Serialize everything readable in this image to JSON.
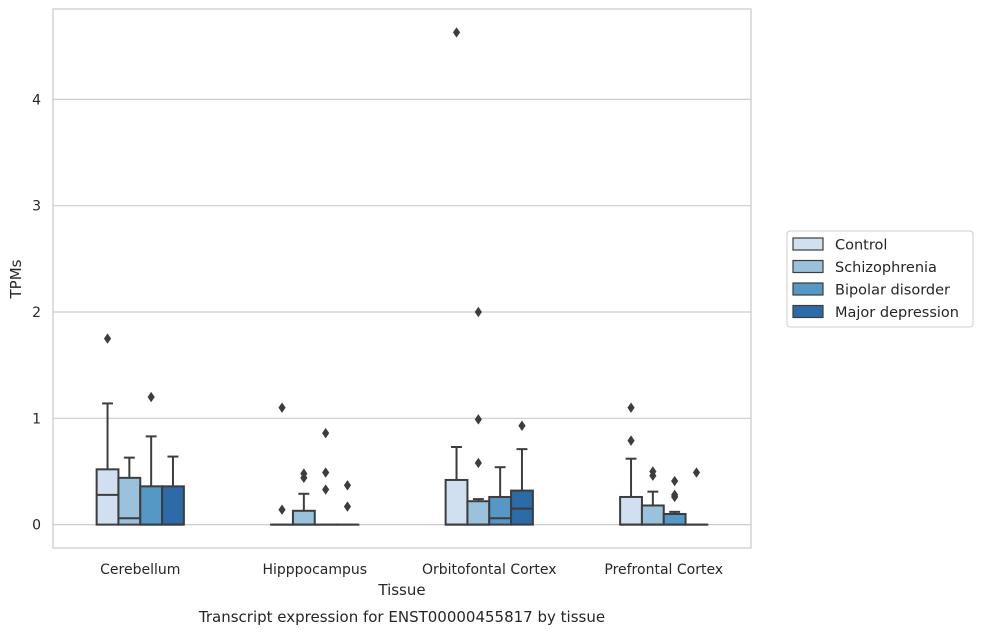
{
  "chart_data": {
    "type": "box",
    "title": "",
    "caption": "Transcript expression for ENST00000455817 by tissue",
    "xlabel": "Tissue",
    "ylabel": "TPMs",
    "ylim": [
      -0.22,
      4.85
    ],
    "yticks": [
      0,
      1,
      2,
      3,
      4
    ],
    "grid": "horizontal",
    "legend_position": "right",
    "categories": [
      "Cerebellum",
      "Hipppocampus",
      "Orbitofontal Cortex",
      "Prefrontal Cortex"
    ],
    "series": [
      {
        "name": "Control",
        "color": "#d0e0f0",
        "boxes": [
          {
            "q1": 0,
            "median": 0.28,
            "q3": 0.52,
            "whisker_low": 0,
            "whisker_high": 1.14,
            "outliers": [
              1.75
            ]
          },
          {
            "q1": 0,
            "median": 0,
            "q3": 0,
            "whisker_low": 0,
            "whisker_high": 0,
            "outliers": [
              1.1,
              0.14
            ]
          },
          {
            "q1": 0,
            "median": 0,
            "q3": 0.42,
            "whisker_low": 0,
            "whisker_high": 0.73,
            "outliers": [
              4.63
            ]
          },
          {
            "q1": 0,
            "median": 0,
            "q3": 0.26,
            "whisker_low": 0,
            "whisker_high": 0.62,
            "outliers": [
              1.1,
              0.79
            ]
          }
        ]
      },
      {
        "name": "Schizophrenia",
        "color": "#9ac2dc",
        "boxes": [
          {
            "q1": 0,
            "median": 0.06,
            "q3": 0.44,
            "whisker_low": 0,
            "whisker_high": 0.63,
            "outliers": []
          },
          {
            "q1": 0,
            "median": 0,
            "q3": 0.13,
            "whisker_low": 0,
            "whisker_high": 0.29,
            "outliers": [
              0.48,
              0.44
            ]
          },
          {
            "q1": 0,
            "median": 0,
            "q3": 0.22,
            "whisker_low": 0,
            "whisker_high": 0.24,
            "outliers": [
              2.0,
              0.99,
              0.58
            ]
          },
          {
            "q1": 0,
            "median": 0,
            "q3": 0.18,
            "whisker_low": 0,
            "whisker_high": 0.31,
            "outliers": [
              0.5,
              0.46
            ]
          }
        ]
      },
      {
        "name": "Bipolar disorder",
        "color": "#5597c5",
        "boxes": [
          {
            "q1": 0,
            "median": 0,
            "q3": 0.36,
            "whisker_low": 0,
            "whisker_high": 0.83,
            "outliers": [
              1.2
            ]
          },
          {
            "q1": 0,
            "median": 0,
            "q3": 0,
            "whisker_low": 0,
            "whisker_high": 0,
            "outliers": [
              0.86,
              0.49,
              0.33
            ]
          },
          {
            "q1": 0,
            "median": 0.06,
            "q3": 0.26,
            "whisker_low": 0,
            "whisker_high": 0.54,
            "outliers": []
          },
          {
            "q1": 0,
            "median": 0,
            "q3": 0.1,
            "whisker_low": 0,
            "whisker_high": 0.12,
            "outliers": [
              0.41,
              0.28,
              0.26
            ]
          }
        ]
      },
      {
        "name": "Major depression",
        "color": "#2d6aa8",
        "boxes": [
          {
            "q1": 0,
            "median": 0,
            "q3": 0.36,
            "whisker_low": 0,
            "whisker_high": 0.64,
            "outliers": []
          },
          {
            "q1": 0,
            "median": 0,
            "q3": 0,
            "whisker_low": 0,
            "whisker_high": 0,
            "outliers": [
              0.37,
              0.17
            ]
          },
          {
            "q1": 0,
            "median": 0.15,
            "q3": 0.32,
            "whisker_low": 0,
            "whisker_high": 0.71,
            "outliers": [
              0.93
            ]
          },
          {
            "q1": 0,
            "median": 0,
            "q3": 0,
            "whisker_low": 0,
            "whisker_high": 0,
            "outliers": [
              0.49
            ]
          }
        ]
      }
    ]
  }
}
